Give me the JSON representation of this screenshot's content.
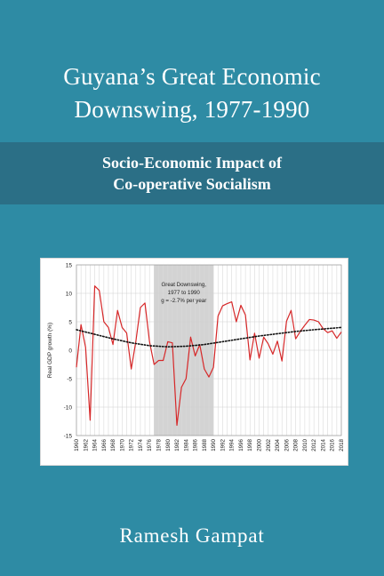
{
  "book": {
    "title_line1": "Guyana’s Great Economic",
    "title_line2": "Downswing, 1977-1990",
    "subtitle_line1": "Socio-Economic Impact of",
    "subtitle_line2": "Co-operative Socialism",
    "author": "Ramesh Gampat"
  },
  "colors": {
    "background": "#2e8ba4",
    "subtitle_band": "#2b6f86",
    "series_line": "#d62728",
    "trend_line": "#111111",
    "shaded_region": "#d3d3d3"
  },
  "chart_data": {
    "type": "line",
    "title": "",
    "ylabel": "Real GDP growth (%)",
    "xlabel": "",
    "ylim": [
      -15,
      15
    ],
    "yticks": [
      15,
      10,
      5,
      0,
      -5,
      -10,
      -15
    ],
    "xlim": [
      1960,
      2018
    ],
    "xticks": [
      "1960",
      "1962",
      "1964",
      "1966",
      "1968",
      "1970",
      "1972",
      "1974",
      "1976",
      "1978",
      "1980",
      "1982",
      "1984",
      "1986",
      "1988",
      "1990",
      "1992",
      "1994",
      "1996",
      "1998",
      "2000",
      "2002",
      "2004",
      "2006",
      "2008",
      "2010",
      "2012",
      "2014",
      "2016",
      "2018"
    ],
    "grid": true,
    "annotation": {
      "lines": [
        "Great Downswing,",
        "1977 to 1990",
        "g = -2.7% per year"
      ],
      "shaded_range": [
        1977,
        1990
      ]
    },
    "series": [
      {
        "style": "solid",
        "x": [
          1960,
          1961,
          1962,
          1963,
          1964,
          1965,
          1966,
          1967,
          1968,
          1969,
          1970,
          1971,
          1972,
          1973,
          1974,
          1975,
          1976,
          1977,
          1978,
          1979,
          1980,
          1981,
          1982,
          1983,
          1984,
          1985,
          1986,
          1987,
          1988,
          1989,
          1990,
          1991,
          1992,
          1993,
          1994,
          1995,
          1996,
          1997,
          1998,
          1999,
          2000,
          2001,
          2002,
          2003,
          2004,
          2005,
          2006,
          2007,
          2008,
          2009,
          2010,
          2011,
          2012,
          2013,
          2014,
          2015,
          2016,
          2017,
          2018
        ],
        "values": [
          -3,
          4.5,
          0.5,
          -12.3,
          11.3,
          10.5,
          5,
          4,
          1,
          7,
          4,
          3,
          -3.3,
          1.5,
          7.5,
          8.3,
          1.5,
          -2.5,
          -1.8,
          -1.8,
          1.5,
          1.3,
          -13.2,
          -6.5,
          -5,
          2.3,
          -1,
          1,
          -3.3,
          -4.7,
          -3,
          6,
          7.8,
          8.2,
          8.5,
          5,
          7.9,
          6.2,
          -1.7,
          3,
          -1.4,
          2.3,
          1.1,
          -0.7,
          1.6,
          -1.9,
          5.1,
          7,
          2,
          3.3,
          4.4,
          5.4,
          5.3,
          5,
          3.8,
          3.1,
          3.4,
          2.1,
          3.2
        ]
      },
      {
        "style": "dotted",
        "x": [
          1960,
          1964,
          1968,
          1972,
          1976,
          1980,
          1984,
          1988,
          1992,
          1996,
          2000,
          2004,
          2008,
          2012,
          2018
        ],
        "values": [
          3.6,
          2.8,
          2.0,
          1.3,
          0.8,
          0.6,
          0.7,
          1.0,
          1.5,
          2.0,
          2.5,
          2.9,
          3.3,
          3.6,
          4.0
        ]
      }
    ]
  }
}
